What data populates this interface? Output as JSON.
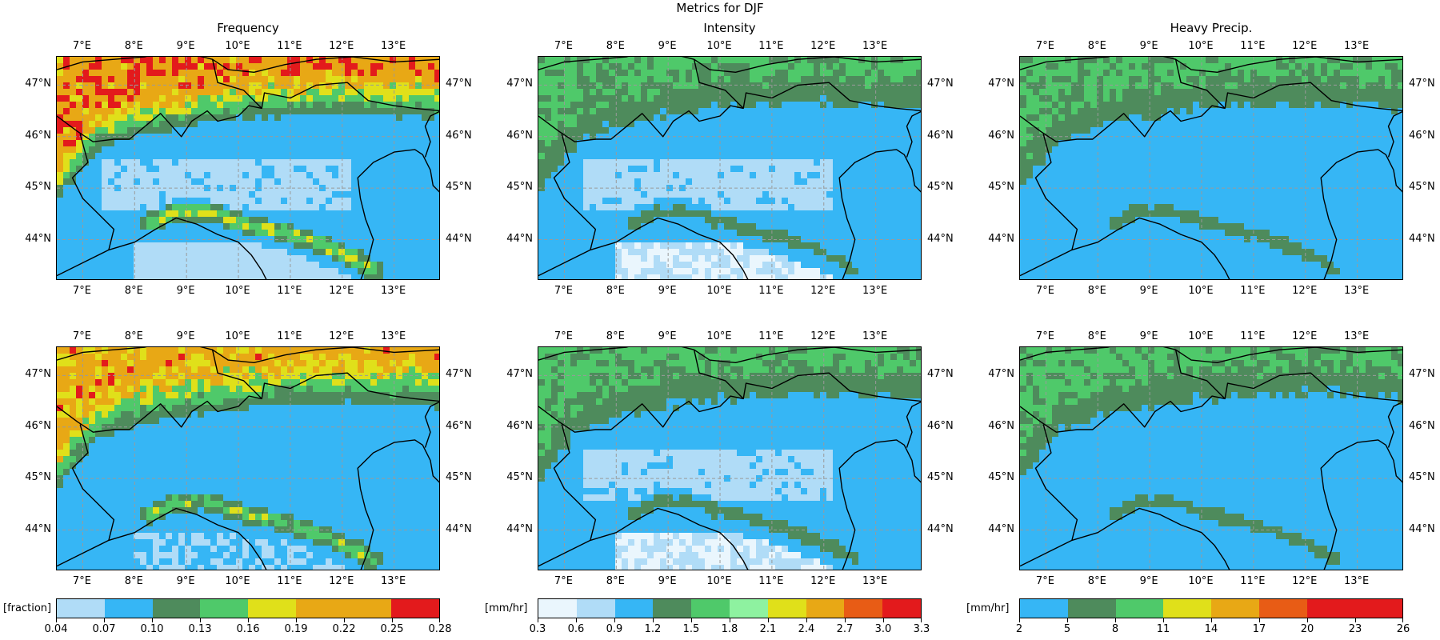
{
  "figure": {
    "title": "Metrics for DJF",
    "columns": [
      "Frequency",
      "Intensity",
      "Heavy Precip."
    ],
    "lon_labels": [
      "7°E",
      "8°E",
      "9°E",
      "10°E",
      "11°E",
      "12°E",
      "13°E"
    ],
    "lat_labels": [
      "47°N",
      "46°N",
      "45°N",
      "44°N"
    ]
  },
  "map_extent": {
    "lon_min": 6.5,
    "lon_max": 13.9,
    "lat_min": 43.2,
    "lat_max": 47.55
  },
  "panels": [
    {
      "id": "frequency-top",
      "metric": "Frequency",
      "row": 1,
      "dominant_class": 1,
      "mountain_class": 7,
      "base_class": 1,
      "plain_class": 0
    },
    {
      "id": "intensity-top",
      "metric": "Intensity",
      "row": 1,
      "dominant_class": 2,
      "mountain_class": 4,
      "base_class": 2,
      "plain_class": 1
    },
    {
      "id": "heavy-top",
      "metric": "Heavy Precip.",
      "row": 1,
      "dominant_class": 0,
      "mountain_class": 2,
      "base_class": 0,
      "plain_class": 0
    },
    {
      "id": "frequency-bottom",
      "metric": "Frequency",
      "row": 2,
      "dominant_class": 1,
      "mountain_class": 6,
      "base_class": 1,
      "plain_class": 1
    },
    {
      "id": "intensity-bottom",
      "metric": "Intensity",
      "row": 2,
      "dominant_class": 1,
      "mountain_class": 4,
      "base_class": 2,
      "plain_class": 1
    },
    {
      "id": "heavy-bottom",
      "metric": "Heavy Precip.",
      "row": 2,
      "dominant_class": 0,
      "mountain_class": 2,
      "base_class": 0,
      "plain_class": 0
    }
  ],
  "colorbars": [
    {
      "label": "[fraction]",
      "ticks": [
        "0.04",
        "0.07",
        "0.10",
        "0.13",
        "0.16",
        "0.19",
        "0.22",
        "0.25",
        "0.28"
      ],
      "colors": [
        "#b0dcf7",
        "#36b6f5",
        "#4e8b5c",
        "#4fc96a",
        "#e0e01a",
        "#e8a815",
        "#e8a815",
        "#e31a1c"
      ]
    },
    {
      "label": "[mm/hr]",
      "ticks": [
        "0.3",
        "0.6",
        "0.9",
        "1.2",
        "1.5",
        "1.8",
        "2.1",
        "2.4",
        "2.7",
        "3.0",
        "3.3"
      ],
      "colors": [
        "#eaf6fd",
        "#b0dcf7",
        "#36b6f5",
        "#4e8b5c",
        "#4fc96a",
        "#8ef2a0",
        "#e0e01a",
        "#e8a815",
        "#e85c15",
        "#e31a1c"
      ]
    },
    {
      "label": "[mm/hr]",
      "ticks": [
        "2",
        "5",
        "8",
        "11",
        "14",
        "17",
        "20",
        "23",
        "26"
      ],
      "colors": [
        "#36b6f5",
        "#4e8b5c",
        "#4fc96a",
        "#e0e01a",
        "#e8a815",
        "#e85c15",
        "#e31a1c",
        "#e31a1c"
      ]
    }
  ]
}
